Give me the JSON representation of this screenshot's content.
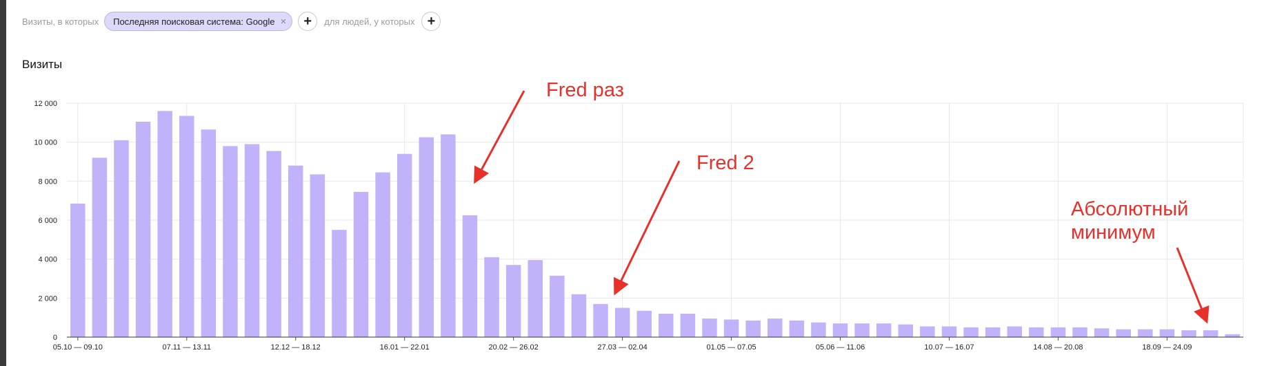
{
  "filter_bar": {
    "prefix": "Визиты, в которых",
    "chip_label": "Последняя поисковая система: Google",
    "chip_close": "×",
    "add_symbol": "+",
    "middle": "для людей, у которых"
  },
  "chart_title": "Визиты",
  "colors": {
    "bar": "#c2b2fa",
    "grid": "#e8e8e8",
    "annotation": "#e8302a"
  },
  "chart_data": {
    "type": "bar",
    "title": "Визиты",
    "xlabel": "",
    "ylabel": "",
    "ylim": [
      0,
      12000
    ],
    "yticks": [
      0,
      2000,
      4000,
      6000,
      8000,
      10000,
      12000
    ],
    "ytick_labels": [
      "0",
      "2 000",
      "4 000",
      "6 000",
      "8 000",
      "10 000",
      "12 000"
    ],
    "xtick_labels": [
      {
        "index": 0,
        "label": "05.10 — 09.10"
      },
      {
        "index": 5,
        "label": "07.11 — 13.11"
      },
      {
        "index": 10,
        "label": "12.12 — 18.12"
      },
      {
        "index": 15,
        "label": "16.01 — 22.01"
      },
      {
        "index": 20,
        "label": "20.02 — 26.02"
      },
      {
        "index": 25,
        "label": "27.03 — 02.04"
      },
      {
        "index": 30,
        "label": "01.05 — 07.05"
      },
      {
        "index": 35,
        "label": "05.06 — 11.06"
      },
      {
        "index": 40,
        "label": "10.07 — 16.07"
      },
      {
        "index": 45,
        "label": "14.08 — 20.08"
      },
      {
        "index": 50,
        "label": "18.09 — 24.09"
      }
    ],
    "values": [
      6850,
      9200,
      10100,
      11050,
      11600,
      11350,
      10650,
      9800,
      9900,
      9550,
      8800,
      8350,
      5500,
      7450,
      8450,
      9400,
      10250,
      10400,
      6250,
      4100,
      3700,
      3950,
      3150,
      2200,
      1700,
      1500,
      1350,
      1200,
      1200,
      950,
      900,
      850,
      950,
      850,
      750,
      700,
      700,
      700,
      650,
      550,
      550,
      500,
      500,
      550,
      500,
      500,
      500,
      450,
      400,
      400,
      400,
      350,
      350,
      150
    ],
    "grid": true,
    "annotations": [
      {
        "label": "Fred раз"
      },
      {
        "label": "Fred 2"
      },
      {
        "label": "Абсолютный\nминимум"
      }
    ]
  }
}
